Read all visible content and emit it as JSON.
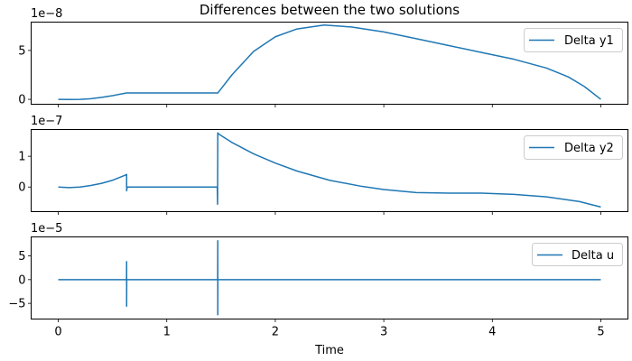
{
  "figure": {
    "title": "Differences between the two solutions",
    "xlabel": "Time",
    "line_color": "#1f77b4"
  },
  "chart_data": [
    {
      "type": "line",
      "title": "Differences between the two solutions",
      "xlabel": "",
      "ylabel": "",
      "offset_label": "1e−8",
      "scale": 1e-08,
      "xlim": [
        -0.25,
        5.25
      ],
      "ylim": [
        -0.5,
        7.9
      ],
      "yticks": [
        0,
        5
      ],
      "ytick_labels": [
        "0",
        "5"
      ],
      "legend": "Delta y1",
      "legend_position": "upper right",
      "series": [
        {
          "name": "Delta y1",
          "x": [
            0,
            0.1,
            0.2,
            0.3,
            0.4,
            0.5,
            0.63,
            0.8,
            1.0,
            1.2,
            1.47,
            1.6,
            1.8,
            2.0,
            2.2,
            2.45,
            2.7,
            3.0,
            3.3,
            3.6,
            3.9,
            4.2,
            4.5,
            4.7,
            4.85,
            5.0
          ],
          "y": [
            0,
            -0.02,
            0,
            0.07,
            0.2,
            0.38,
            0.65,
            0.65,
            0.65,
            0.65,
            0.65,
            2.5,
            4.9,
            6.4,
            7.2,
            7.6,
            7.4,
            6.9,
            6.2,
            5.5,
            4.8,
            4.1,
            3.2,
            2.3,
            1.3,
            0
          ]
        }
      ]
    },
    {
      "type": "line",
      "title": "",
      "xlabel": "",
      "ylabel": "",
      "offset_label": "1e−7",
      "scale": 1e-07,
      "xlim": [
        -0.25,
        5.25
      ],
      "ylim": [
        -0.8,
        1.87
      ],
      "yticks": [
        0,
        1
      ],
      "ytick_labels": [
        "0",
        "1"
      ],
      "legend": "Delta y2",
      "legend_position": "upper right",
      "series": [
        {
          "name": "Delta y2",
          "x": [
            0,
            0.1,
            0.2,
            0.3,
            0.4,
            0.5,
            0.62,
            0.63,
            0.63,
            0.635,
            1.0,
            1.465,
            1.468,
            1.47,
            1.48,
            1.6,
            1.8,
            2.0,
            2.2,
            2.5,
            2.8,
            3.0,
            3.3,
            3.6,
            3.9,
            4.2,
            4.5,
            4.8,
            5.0
          ],
          "y": [
            0,
            -0.02,
            0,
            0.05,
            0.12,
            0.22,
            0.39,
            0.41,
            -0.12,
            0,
            0,
            0,
            -0.56,
            1.76,
            1.72,
            1.45,
            1.08,
            0.78,
            0.52,
            0.22,
            0.02,
            -0.08,
            -0.18,
            -0.2,
            -0.2,
            -0.24,
            -0.32,
            -0.47,
            -0.65
          ]
        }
      ]
    },
    {
      "type": "line",
      "title": "",
      "xlabel": "Time",
      "ylabel": "",
      "offset_label": "1e−5",
      "scale": 1e-05,
      "xlim": [
        -0.25,
        5.25
      ],
      "ylim": [
        -8.3,
        9.0
      ],
      "xticks": [
        0,
        1,
        2,
        3,
        4,
        5
      ],
      "xtick_labels": [
        "0",
        "1",
        "2",
        "3",
        "4",
        "5"
      ],
      "yticks": [
        -5,
        0,
        5
      ],
      "ytick_labels": [
        "−5",
        "0",
        "5"
      ],
      "legend": "Delta u",
      "legend_position": "upper right",
      "series": [
        {
          "name": "Delta u",
          "x": [
            0,
            0.629,
            0.63,
            0.63,
            0.631,
            1.469,
            1.47,
            1.47,
            1.471,
            5.0
          ],
          "y": [
            0,
            0,
            3.8,
            -5.6,
            0,
            0,
            8.2,
            -7.4,
            0,
            0
          ]
        }
      ]
    }
  ]
}
